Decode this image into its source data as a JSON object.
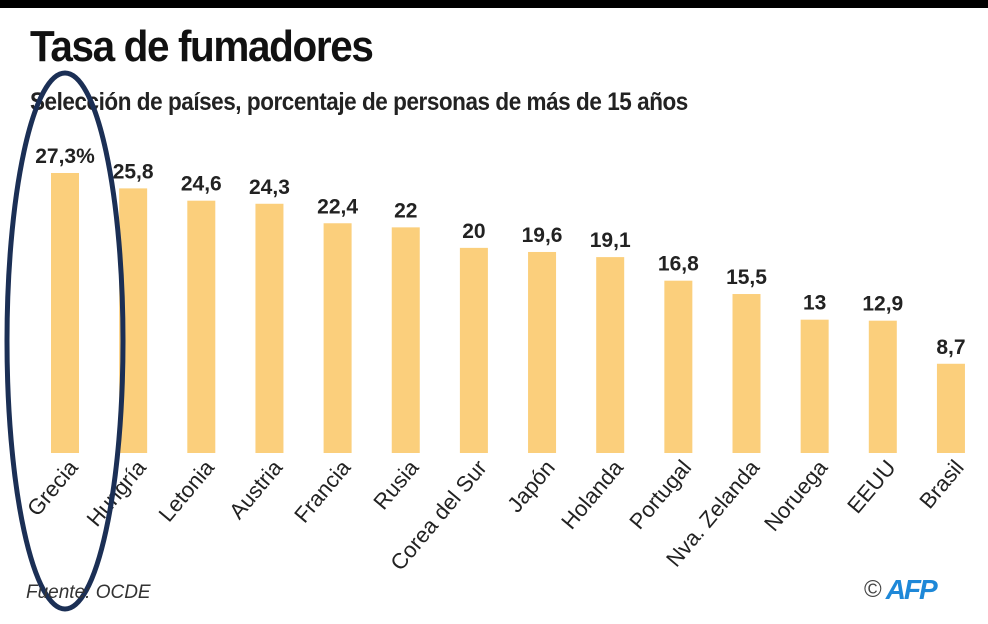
{
  "title": "Tasa de fumadores",
  "subtitle": "Selección de países, porcentaje de personas de más de 15 años",
  "source": "Fuente: OCDE",
  "credit": {
    "copyright": "©",
    "agency": "AFP"
  },
  "colors": {
    "bar": "#fbcf7c",
    "annotation": "#1b2f55",
    "afp": "#1e88d8"
  },
  "chart_data": {
    "type": "bar",
    "title": "Tasa de fumadores",
    "subtitle": "Selección de países, porcentaje de personas de más de 15 años",
    "xlabel": "",
    "ylabel": "",
    "ylim": [
      0,
      28
    ],
    "grid": false,
    "categories": [
      "Grecia",
      "Hungría",
      "Letonia",
      "Austria",
      "Francia",
      "Rusia",
      "Corea del Sur",
      "Japón",
      "Holanda",
      "Portugal",
      "Nva. Zelanda",
      "Noruega",
      "EEUU",
      "Brasil"
    ],
    "values": [
      27.3,
      25.8,
      24.6,
      24.3,
      22.4,
      22,
      20,
      19.6,
      19.1,
      16.8,
      15.5,
      13,
      12.9,
      8.7
    ],
    "labels": [
      "27,3%",
      "25,8",
      "24,6",
      "24,3",
      "22,4",
      "22",
      "20",
      "19,6",
      "19,1",
      "16,8",
      "15,5",
      "13",
      "12,9",
      "8,7"
    ],
    "highlighted": "Grecia"
  }
}
